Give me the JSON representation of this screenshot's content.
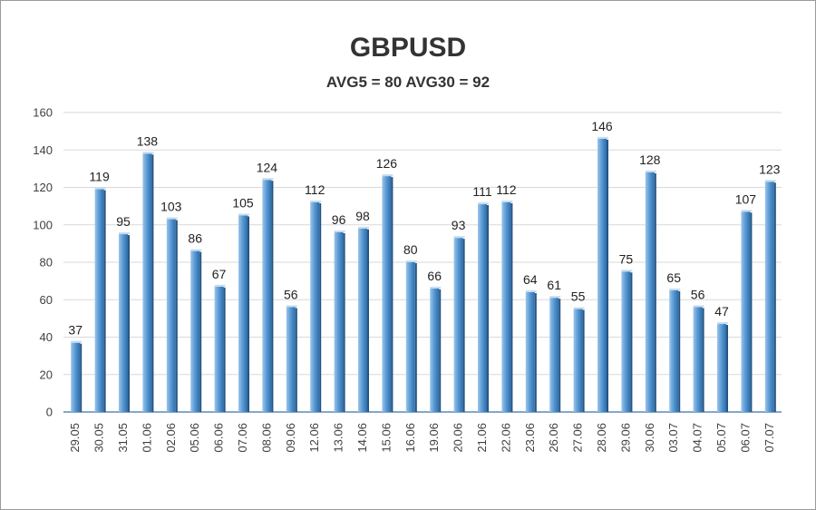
{
  "chart_data": {
    "type": "bar",
    "title": "GBPUSD",
    "subtitle": "AVG5 = 80 AVG30 = 92",
    "categories": [
      "29.05",
      "30.05",
      "31.05",
      "01.06",
      "02.06",
      "05.06",
      "06.06",
      "07.06",
      "08.06",
      "09.06",
      "12.06",
      "13.06",
      "14.06",
      "15.06",
      "16.06",
      "19.06",
      "20.06",
      "21.06",
      "22.06",
      "23.06",
      "26.06",
      "27.06",
      "28.06",
      "29.06",
      "30.06",
      "03.07",
      "04.07",
      "05.07",
      "06.07",
      "07.07"
    ],
    "values": [
      37,
      119,
      95,
      138,
      103,
      86,
      67,
      105,
      124,
      56,
      112,
      96,
      98,
      126,
      80,
      66,
      93,
      111,
      112,
      64,
      61,
      55,
      146,
      75,
      128,
      65,
      56,
      47,
      107,
      123
    ],
    "ylim": [
      0,
      160
    ],
    "yticks": [
      0,
      20,
      40,
      60,
      80,
      100,
      120,
      140,
      160
    ],
    "grid": true,
    "legend": "none",
    "colors": {
      "bar_light": "#9cc5ea",
      "bar_mid": "#5b9bd5",
      "bar_dark": "#2e6da8",
      "grid": "#d9d9d9",
      "baseline": "#5f88b8"
    }
  }
}
